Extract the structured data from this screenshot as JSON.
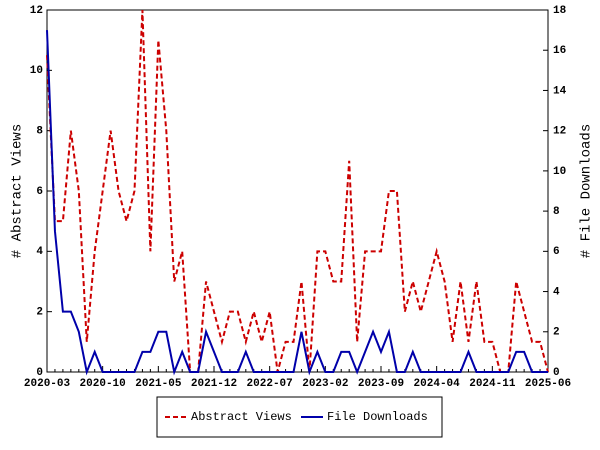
{
  "chart_data": {
    "type": "line",
    "categories": [
      "2020-03",
      null,
      null,
      null,
      null,
      null,
      null,
      "2020-10",
      null,
      null,
      null,
      null,
      null,
      null,
      "2021-05",
      null,
      null,
      null,
      null,
      null,
      null,
      "2021-12",
      null,
      null,
      null,
      null,
      null,
      null,
      "2022-07",
      null,
      null,
      null,
      null,
      null,
      null,
      "2023-02",
      null,
      null,
      null,
      null,
      null,
      null,
      "2023-09",
      null,
      null,
      null,
      null,
      null,
      null,
      "2024-04",
      null,
      null,
      null,
      null,
      null,
      null,
      "2024-11",
      null,
      null,
      null,
      null,
      null,
      null,
      "2025-06"
    ],
    "series": [
      {
        "name": "Abstract Views",
        "color": "#cc0000",
        "dashed": true,
        "values": [
          10.5,
          5,
          5,
          8,
          6,
          1,
          4,
          6,
          8,
          6,
          5,
          6,
          12,
          4,
          11,
          8,
          3,
          4,
          0,
          0,
          3,
          2,
          1,
          2,
          2,
          1,
          2,
          1,
          2,
          0,
          1,
          1,
          3,
          0,
          4,
          4,
          3,
          3,
          7,
          1,
          4,
          4,
          4,
          6,
          6,
          2,
          3,
          2,
          3,
          4,
          3,
          1,
          3,
          1,
          3,
          1,
          1,
          0,
          0,
          3,
          2,
          1,
          1,
          0
        ]
      },
      {
        "name": "File Downloads",
        "color": "#0000aa",
        "axis": "y2",
        "values": [
          17,
          7,
          3,
          3,
          2,
          0,
          1,
          0,
          0,
          0,
          0,
          0,
          1,
          1,
          2,
          2,
          0,
          1,
          0,
          0,
          2,
          1,
          0,
          0,
          0,
          1,
          0,
          0,
          0,
          0,
          0,
          0,
          2,
          0,
          1,
          0,
          0,
          1,
          1,
          0,
          1,
          2,
          1,
          2,
          0,
          0,
          1,
          0,
          0,
          0,
          0,
          0,
          0,
          1,
          0,
          0,
          0,
          0,
          0,
          1,
          1,
          0,
          0,
          0
        ]
      }
    ],
    "ylabel": "# Abstract Views",
    "y2label": "# File Downloads",
    "ylim": [
      0,
      12
    ],
    "yticks": [
      0,
      2,
      4,
      6,
      8,
      10,
      12
    ],
    "y2lim": [
      0,
      18
    ],
    "y2ticks": [
      0,
      2,
      4,
      6,
      8,
      10,
      12,
      14,
      16,
      18
    ],
    "legend": "bottom"
  }
}
